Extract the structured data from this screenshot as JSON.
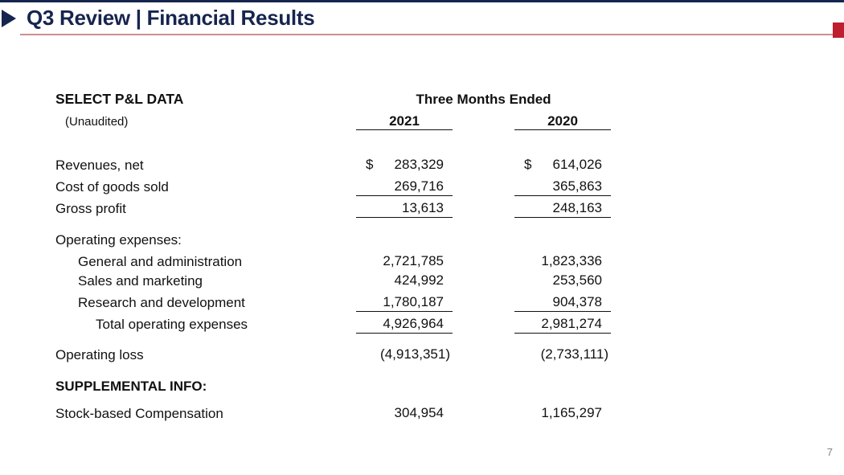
{
  "slide": {
    "title": "Q3 Review | Financial Results",
    "page_number": "7",
    "colors": {
      "navy": "#16254e",
      "accent_red": "#be1e2d",
      "rule_rose": "#c9908f",
      "text": "#111111",
      "page_number_gray": "#7f8389"
    }
  },
  "table": {
    "currency_symbol": "$",
    "header": {
      "left_title": "SELECT P&L DATA",
      "left_subtitle": "(Unaudited)",
      "group_header": "Three Months Ended",
      "col_2021": "2021",
      "col_2020": "2020"
    },
    "rows": [
      {
        "label": "Revenues, net",
        "indent": 0,
        "bold": false,
        "dollar": true,
        "underline": false,
        "paren": false,
        "v2021": "283,329",
        "v2020": "614,026"
      },
      {
        "label": "Cost of goods sold",
        "indent": 0,
        "bold": false,
        "dollar": false,
        "underline": true,
        "paren": false,
        "v2021": "269,716",
        "v2020": "365,863"
      },
      {
        "label": "Gross profit",
        "indent": 0,
        "bold": false,
        "dollar": false,
        "underline": true,
        "paren": false,
        "v2021": "13,613",
        "v2020": "248,163"
      },
      {
        "label": "Operating expenses:",
        "indent": 0,
        "bold": false,
        "dollar": false,
        "underline": false,
        "paren": false,
        "v2021": "",
        "v2020": ""
      },
      {
        "label": "General and administration",
        "indent": 1,
        "bold": false,
        "dollar": false,
        "underline": false,
        "paren": false,
        "v2021": "2,721,785",
        "v2020": "1,823,336"
      },
      {
        "label": "Sales and marketing",
        "indent": 1,
        "bold": false,
        "dollar": false,
        "underline": false,
        "paren": false,
        "v2021": "424,992",
        "v2020": "253,560"
      },
      {
        "label": "Research and development",
        "indent": 1,
        "bold": false,
        "dollar": false,
        "underline": true,
        "paren": false,
        "v2021": "1,780,187",
        "v2020": "904,378"
      },
      {
        "label": "Total operating expenses",
        "indent": 2,
        "bold": false,
        "dollar": false,
        "underline": true,
        "paren": false,
        "v2021": "4,926,964",
        "v2020": "2,981,274"
      },
      {
        "label": "Operating loss",
        "indent": 0,
        "bold": false,
        "dollar": false,
        "underline": false,
        "paren": true,
        "v2021": "(4,913,351)",
        "v2020": "(2,733,111)"
      },
      {
        "label": "SUPPLEMENTAL INFO:",
        "indent": 0,
        "bold": true,
        "dollar": false,
        "underline": false,
        "paren": false,
        "v2021": "",
        "v2020": ""
      },
      {
        "label": "Stock-based Compensation",
        "indent": 0,
        "bold": false,
        "dollar": false,
        "underline": false,
        "paren": false,
        "v2021": "304,954",
        "v2020": "1,165,297"
      }
    ]
  }
}
